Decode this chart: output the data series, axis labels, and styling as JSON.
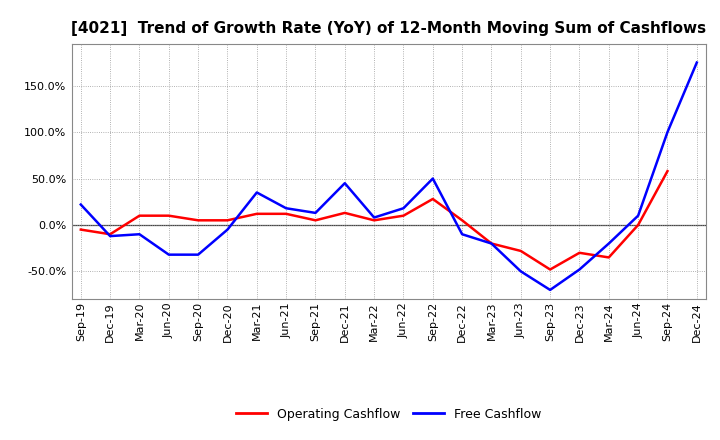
{
  "title": "[4021]  Trend of Growth Rate (YoY) of 12-Month Moving Sum of Cashflows",
  "x_labels": [
    "Sep-19",
    "Dec-19",
    "Mar-20",
    "Jun-20",
    "Sep-20",
    "Dec-20",
    "Mar-21",
    "Jun-21",
    "Sep-21",
    "Dec-21",
    "Mar-22",
    "Jun-22",
    "Sep-22",
    "Dec-22",
    "Mar-23",
    "Jun-23",
    "Sep-23",
    "Dec-23",
    "Mar-24",
    "Jun-24",
    "Sep-24",
    "Dec-24"
  ],
  "operating_cashflow": [
    -5.0,
    -10.0,
    10.0,
    10.0,
    5.0,
    5.0,
    12.0,
    12.0,
    5.0,
    13.0,
    5.0,
    10.0,
    28.0,
    5.0,
    -20.0,
    -28.0,
    -48.0,
    -30.0,
    -35.0,
    0.0,
    58.0,
    null
  ],
  "free_cashflow": [
    22.0,
    -12.0,
    -10.0,
    -32.0,
    -32.0,
    -5.0,
    35.0,
    18.0,
    13.0,
    45.0,
    8.0,
    18.0,
    50.0,
    -10.0,
    -20.0,
    -50.0,
    -70.0,
    -48.0,
    -20.0,
    10.0,
    100.0,
    175.0
  ],
  "operating_color": "#ff0000",
  "free_color": "#0000ff",
  "background_color": "#ffffff",
  "grid_color": "#999999",
  "ylim": [
    -80,
    195
  ],
  "yticks": [
    -50.0,
    0.0,
    50.0,
    100.0,
    150.0
  ],
  "legend_labels": [
    "Operating Cashflow",
    "Free Cashflow"
  ],
  "title_fontsize": 11,
  "tick_fontsize": 8,
  "legend_fontsize": 9
}
